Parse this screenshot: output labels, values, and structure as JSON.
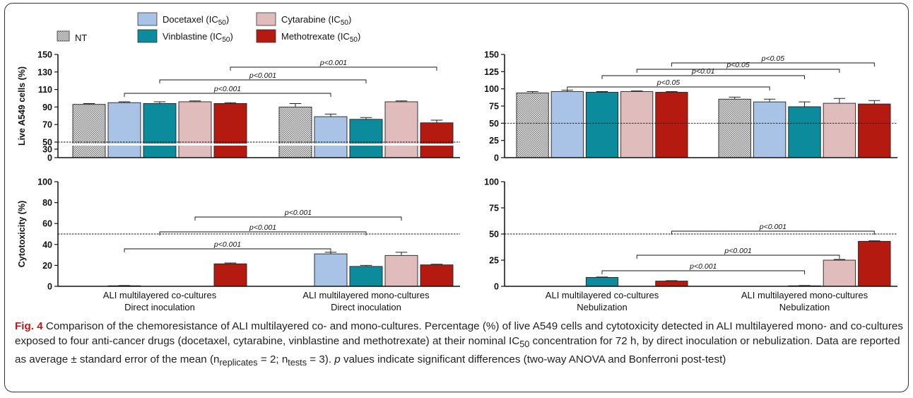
{
  "legend": [
    {
      "label": "NT",
      "color": "#d0d0d0",
      "pattern": "checker"
    },
    {
      "label": "Docetaxel (IC",
      "sub": "50",
      "tail": ")",
      "color": "#a9c3e6"
    },
    {
      "label": "Vinblastine (IC",
      "sub": "50",
      "tail": ")",
      "color": "#0b8b9b"
    },
    {
      "label": "Cytarabine (IC",
      "sub": "50",
      "tail": ")",
      "color": "#e0bcbc"
    },
    {
      "label": "Methotrexate (IC",
      "sub": "50",
      "tail": ")",
      "color": "#b51a10"
    }
  ],
  "chart_data": [
    {
      "id": "live-direct",
      "type": "bar",
      "ylabel": "Live A549 cells (%)",
      "ylim": [
        0,
        150
      ],
      "yticks": [
        "0",
        "30",
        "50",
        "70",
        "90",
        "110",
        "130",
        "150"
      ],
      "axis_break": [
        0,
        50
      ],
      "reference_line": 50,
      "groups": [
        {
          "series": [
            "NT",
            "Docetaxel",
            "Vinblastine",
            "Cytarabine",
            "Methotrexate"
          ],
          "values": [
            93,
            95,
            94,
            96,
            94
          ],
          "errors": [
            1,
            1,
            2,
            1,
            1
          ]
        },
        {
          "series": [
            "NT",
            "Docetaxel",
            "Vinblastine",
            "Cytarabine",
            "Methotrexate"
          ],
          "values": [
            90,
            79,
            76,
            96,
            72
          ],
          "errors": [
            4,
            3,
            2,
            1,
            3
          ]
        }
      ],
      "brackets": [
        {
          "label": "p<0.001",
          "from": [
            0,
            1
          ],
          "to": [
            1,
            1
          ]
        },
        {
          "label": "p<0.001",
          "from": [
            0,
            2
          ],
          "to": [
            1,
            2
          ]
        },
        {
          "label": "p<0.001",
          "from": [
            0,
            4
          ],
          "to": [
            1,
            4
          ]
        }
      ]
    },
    {
      "id": "live-nebulization",
      "type": "bar",
      "ylim": [
        0,
        150
      ],
      "yticks": [
        "0",
        "25",
        "50",
        "75",
        "100",
        "125",
        "150"
      ],
      "reference_line": 50,
      "groups": [
        {
          "series": [
            "NT",
            "Docetaxel",
            "Vinblastine",
            "Cytarabine",
            "Methotrexate"
          ],
          "values": [
            94,
            96,
            95,
            96,
            95
          ],
          "errors": [
            2,
            2,
            1,
            1,
            1
          ]
        },
        {
          "series": [
            "NT",
            "Docetaxel",
            "Vinblastine",
            "Cytarabine",
            "Methotrexate"
          ],
          "values": [
            85,
            81,
            74,
            79,
            78
          ],
          "errors": [
            3,
            4,
            7,
            7,
            5
          ]
        }
      ],
      "brackets": [
        {
          "label": "p<0.05",
          "from": [
            0,
            1
          ],
          "to": [
            1,
            1
          ]
        },
        {
          "label": "p<0.01",
          "from": [
            0,
            2
          ],
          "to": [
            1,
            2
          ]
        },
        {
          "label": "p<0.05",
          "from": [
            0,
            3
          ],
          "to": [
            1,
            3
          ]
        },
        {
          "label": "p<0.05",
          "from": [
            0,
            4
          ],
          "to": [
            1,
            4
          ]
        }
      ]
    },
    {
      "id": "cytotox-direct",
      "type": "bar",
      "ylabel": "Cytotoxicity (%)",
      "ylim": [
        0,
        100
      ],
      "yticks": [
        "0",
        "20",
        "40",
        "60",
        "80",
        "100"
      ],
      "reference_line": 50,
      "categories": [
        "ALI multilayered co-cultures\nDirect inoculation",
        "ALI multilayered mono-cultures\nDirect inoculation"
      ],
      "groups": [
        {
          "series": [
            "NT",
            "Docetaxel",
            "Vinblastine",
            "Cytarabine",
            "Methotrexate"
          ],
          "values": [
            0,
            0.5,
            0,
            0,
            21.5
          ],
          "errors": [
            0,
            0.3,
            0,
            0,
            0.8
          ]
        },
        {
          "series": [
            "NT",
            "Docetaxel",
            "Vinblastine",
            "Cytarabine",
            "Methotrexate"
          ],
          "values": [
            0,
            31,
            19,
            29.5,
            20.5
          ],
          "errors": [
            0,
            1.5,
            1,
            3,
            0.6
          ]
        }
      ],
      "brackets": [
        {
          "label": "p<0.001",
          "from": [
            0,
            1
          ],
          "to": [
            1,
            1
          ]
        },
        {
          "label": "p<0.001",
          "from": [
            0,
            2
          ],
          "to": [
            1,
            2
          ]
        },
        {
          "label": "p<0.001",
          "from": [
            0,
            3
          ],
          "to": [
            1,
            3
          ]
        }
      ]
    },
    {
      "id": "cytotox-nebulization",
      "type": "bar",
      "ylim": [
        0,
        100
      ],
      "yticks": [
        "0",
        "25",
        "50",
        "75",
        "100"
      ],
      "reference_line": 50,
      "categories": [
        "ALI multilayered co-cultures\nNebulization",
        "ALI multilayered mono-cultures\nNebulization"
      ],
      "groups": [
        {
          "series": [
            "NT",
            "Docetaxel",
            "Vinblastine",
            "Cytarabine",
            "Methotrexate"
          ],
          "values": [
            0,
            0,
            8.5,
            0,
            5
          ],
          "errors": [
            0,
            0,
            0.4,
            0,
            0.4
          ]
        },
        {
          "series": [
            "NT",
            "Docetaxel",
            "Vinblastine",
            "Cytarabine",
            "Methotrexate"
          ],
          "values": [
            0,
            0,
            0.5,
            25,
            43
          ],
          "errors": [
            0,
            0,
            0.3,
            0.7,
            0.5
          ]
        }
      ],
      "brackets": [
        {
          "label": "p<0.001",
          "from": [
            0,
            2
          ],
          "to": [
            1,
            2
          ]
        },
        {
          "label": "p<0.001",
          "from": [
            0,
            3
          ],
          "to": [
            1,
            3
          ]
        },
        {
          "label": "p<0.001",
          "from": [
            0,
            4
          ],
          "to": [
            1,
            4
          ]
        }
      ]
    }
  ],
  "caption": {
    "label": "Fig. 4",
    "text1": " Comparison of the chemoresistance of ALI multilayered co- and mono-cultures. Percentage (%) of live A549 cells and cytotoxicity detected in ALI multilayered mono- and co-cultures exposed to four anti-cancer drugs (docetaxel, cytarabine, vinblastine and methotrexate) at their nominal IC",
    "sub1": "50",
    "text2": " concentration for 72 h, by direct inoculation or nebulization. Data are reported as average ± standard error of the mean (n",
    "sub2": "replicates",
    "text3": " = 2; n",
    "sub3": "tests",
    "text4": " = 3). ",
    "p": "p",
    "text5": " values indicate significant differences (two-way ANOVA and Bonferroni post-test)"
  }
}
